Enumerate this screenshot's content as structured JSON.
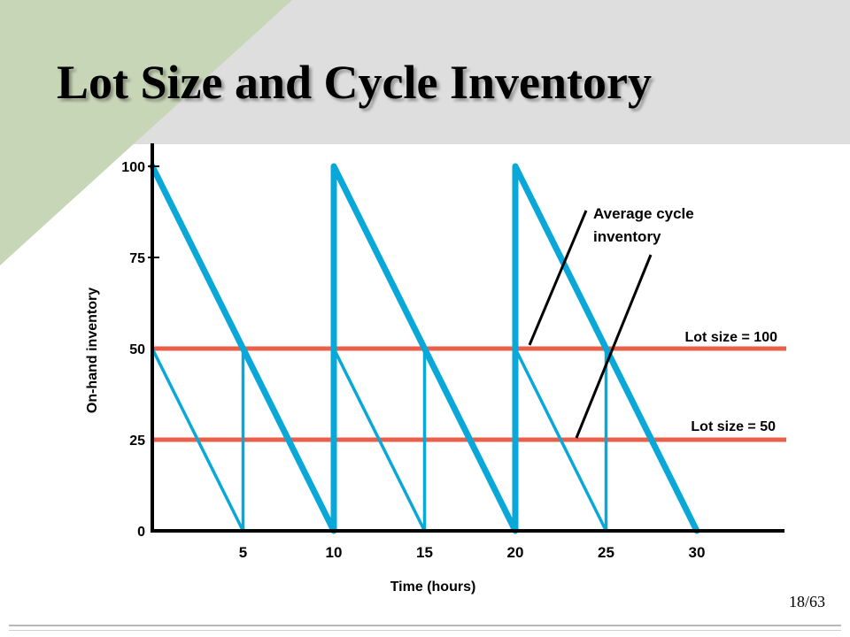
{
  "slide": {
    "title": "Lot Size and Cycle Inventory",
    "page_number": "18/63"
  },
  "colors": {
    "sawtooth": "#0aa8d8",
    "average_line": "#e8604a",
    "axis": "#000000",
    "corner_green": "#c8d6b8",
    "header_gray": "#dedede"
  },
  "chart_data": {
    "type": "line",
    "xlabel": "Time (hours)",
    "ylabel": "On-hand inventory",
    "xlim": [
      0,
      35
    ],
    "ylim": [
      0,
      100
    ],
    "x_ticks": [
      5,
      10,
      15,
      20,
      25,
      30
    ],
    "y_ticks": [
      0,
      25,
      50,
      75,
      100
    ],
    "series": [
      {
        "name": "Lot size = 100",
        "x": [
          0,
          10,
          10,
          20,
          20,
          30
        ],
        "y": [
          100,
          0,
          100,
          0,
          100,
          0
        ]
      },
      {
        "name": "Lot size = 50",
        "x": [
          0,
          5,
          5,
          10,
          10,
          15,
          15,
          20,
          20,
          25,
          25,
          30
        ],
        "y": [
          50,
          0,
          50,
          0,
          50,
          0,
          50,
          0,
          50,
          0,
          50,
          0
        ]
      }
    ],
    "reference_lines": [
      {
        "label": "Lot size = 100",
        "y": 50
      },
      {
        "label": "Lot size = 50",
        "y": 25
      }
    ],
    "annotations": [
      {
        "text": "Average cycle inventory"
      }
    ]
  }
}
